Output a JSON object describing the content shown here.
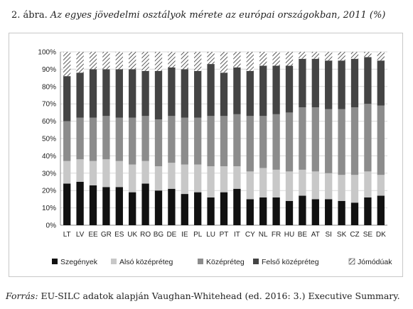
{
  "caption": {
    "number": "2. ábra.",
    "title": "Az egyes jövedelmi osztályok mérete az európai országokban, 2011 (%)"
  },
  "source": {
    "label": "Forrás:",
    "text": "EU-SILC adatok alapján Vaughan-Whitehead (ed. 2016: 3.) Executive Summary."
  },
  "chart_data": {
    "type": "bar",
    "stacked": true,
    "title": "",
    "xlabel": "",
    "ylabel": "",
    "ylim": [
      0,
      100
    ],
    "yticks": [
      "0%",
      "10%",
      "20%",
      "30%",
      "40%",
      "50%",
      "60%",
      "70%",
      "80%",
      "90%",
      "100%"
    ],
    "grid": true,
    "legend_position": "bottom",
    "categories": [
      "LT",
      "LV",
      "EE",
      "GR",
      "ES",
      "UK",
      "RO",
      "BG",
      "DE",
      "IE",
      "PL",
      "LU",
      "PT",
      "IT",
      "CY",
      "NL",
      "FR",
      "HU",
      "BE",
      "AT",
      "SI",
      "SK",
      "CZ",
      "SE",
      "DK"
    ],
    "series": [
      {
        "name": "Szegények",
        "color": "#111111",
        "values": [
          24,
          25,
          23,
          22,
          22,
          19,
          24,
          20,
          21,
          18,
          19,
          16,
          19,
          21,
          15,
          16,
          16,
          14,
          17,
          15,
          15,
          14,
          13,
          16,
          17
        ]
      },
      {
        "name": "Alsó középréteg",
        "color": "#c8c8c8",
        "values": [
          13,
          13,
          14,
          16,
          15,
          16,
          13,
          14,
          15,
          17,
          16,
          18,
          15,
          13,
          16,
          17,
          16,
          17,
          15,
          16,
          15,
          15,
          16,
          15,
          12
        ]
      },
      {
        "name": "Középréteg",
        "color": "#8c8c8c",
        "values": [
          23,
          24,
          25,
          25,
          25,
          27,
          26,
          27,
          27,
          27,
          27,
          29,
          29,
          30,
          32,
          30,
          32,
          34,
          36,
          37,
          37,
          38,
          39,
          39,
          40
        ]
      },
      {
        "name": "Felső középréteg",
        "color": "#444444",
        "values": [
          26,
          26,
          28,
          27,
          28,
          28,
          26,
          28,
          28,
          28,
          27,
          30,
          25,
          27,
          26,
          29,
          28,
          27,
          28,
          28,
          28,
          28,
          28,
          27,
          26
        ]
      },
      {
        "name": "Jómódúak",
        "color": "hatch",
        "values": [
          14,
          12,
          10,
          10,
          10,
          10,
          11,
          11,
          9,
          10,
          11,
          7,
          12,
          9,
          11,
          8,
          8,
          8,
          4,
          4,
          5,
          5,
          4,
          3,
          5
        ]
      }
    ]
  }
}
